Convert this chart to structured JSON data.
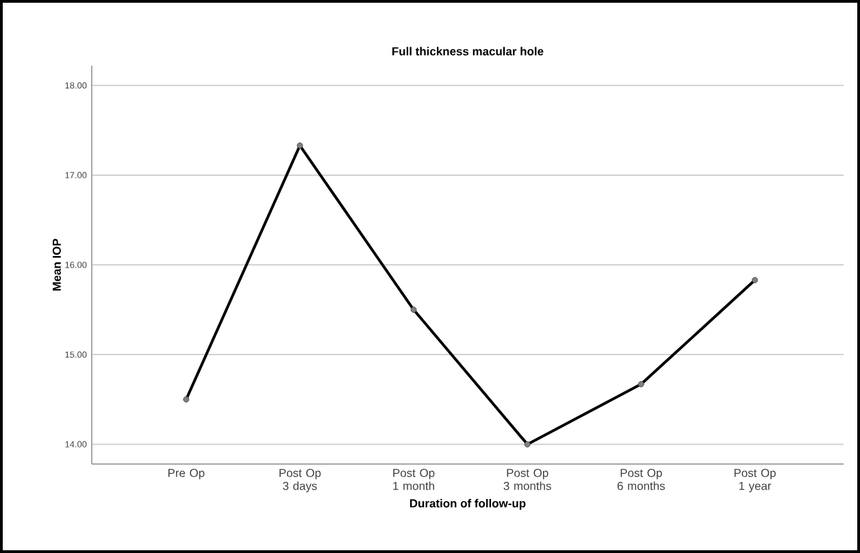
{
  "chart_data": {
    "type": "line",
    "title": "Full thickness macular hole",
    "xlabel": "Duration of follow-up",
    "ylabel": "Mean IOP",
    "categories": [
      "Pre Op",
      "Post Op 3 days",
      "Post Op 1 month",
      "Post Op 3 months",
      "Post Op 6 months",
      "Post Op 1 year"
    ],
    "values": [
      14.5,
      17.33,
      15.5,
      14.0,
      14.67,
      15.83
    ],
    "color": "#000000",
    "ylim": [
      13.78,
      18.22
    ],
    "yticks": [
      {
        "value": 14,
        "label": "14.00"
      },
      {
        "value": 15,
        "label": "15.00"
      },
      {
        "value": 16,
        "label": "16.00"
      },
      {
        "value": 17,
        "label": "17.00"
      },
      {
        "value": 18,
        "label": "18.00"
      }
    ],
    "grid": "y",
    "marker": "circle",
    "line_style": "solid"
  }
}
